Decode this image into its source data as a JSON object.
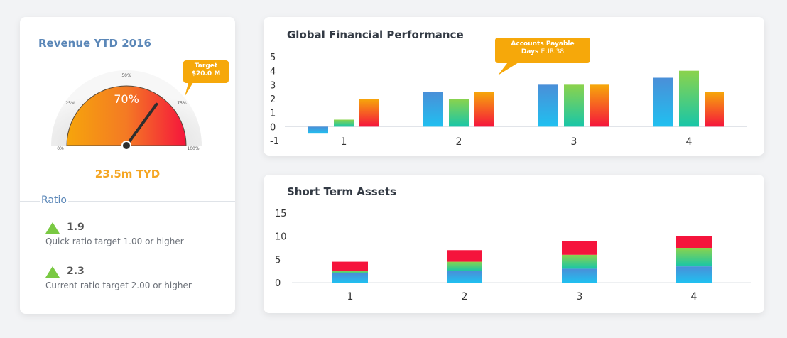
{
  "revenue": {
    "title": "Revenue YTD 2016",
    "percent_label": "70%",
    "percent": 70,
    "scale_labels": [
      "0%",
      "25%",
      "50%",
      "75%",
      "100%"
    ],
    "target_line1": "Target",
    "target_line2": "$20.0 M",
    "value": "23.5m TYD"
  },
  "ratio": {
    "label": "Ratio",
    "items": [
      {
        "value": "1.9",
        "desc": "Quick ratio target 1.00 or higher"
      },
      {
        "value": "2.3",
        "desc": "Current ratio target 2.00 or higher"
      }
    ]
  },
  "colors": {
    "blue": "#2fb5ea",
    "green": "#79cc55",
    "orange": "#f6a80a",
    "red": "#f5143c",
    "title_blue": "#5b87b8"
  },
  "perf": {
    "title": "Global Financial Performance",
    "callout_line1": "Accounts Payable",
    "callout_line2a": "Days",
    "callout_line2b": "EUR.38"
  },
  "assets": {
    "title": "Short Term Assets"
  },
  "chart_data": [
    {
      "type": "bar",
      "title": "Global Financial Performance",
      "categories": [
        "1",
        "2",
        "3",
        "4"
      ],
      "series": [
        {
          "values": [
            -0.5,
            2.5,
            3,
            3.5
          ]
        },
        {
          "values": [
            0.5,
            2,
            3,
            4
          ]
        },
        {
          "values": [
            2,
            2.5,
            3,
            2.5
          ]
        }
      ],
      "ylim": [
        -1,
        5
      ],
      "yticks": [
        "5",
        "4",
        "3",
        "2",
        "1",
        "0",
        "-1"
      ]
    },
    {
      "type": "bar",
      "stacked": true,
      "title": "Short Term Assets",
      "categories": [
        "1",
        "2",
        "3",
        "4"
      ],
      "series": [
        {
          "values": [
            2,
            2.5,
            3,
            3.5
          ]
        },
        {
          "values": [
            0.5,
            2,
            3,
            4
          ]
        },
        {
          "values": [
            2,
            2.5,
            3,
            2.5
          ]
        }
      ],
      "ylim": [
        0,
        15
      ],
      "yticks": [
        "15",
        "10",
        "5",
        "0"
      ]
    }
  ]
}
